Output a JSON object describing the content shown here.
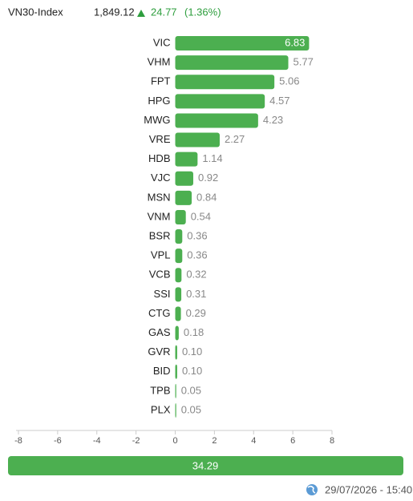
{
  "header": {
    "index_name": "VN30-Index",
    "value": "1,849.12",
    "change": "24.77",
    "change_pct": "(1.36%)"
  },
  "chart_data": {
    "type": "bar",
    "orientation": "horizontal",
    "color": "#4caf50",
    "categories": [
      "VIC",
      "VHM",
      "FPT",
      "HPG",
      "MWG",
      "VRE",
      "HDB",
      "VJC",
      "MSN",
      "VNM",
      "BSR",
      "VPL",
      "VCB",
      "SSI",
      "CTG",
      "GAS",
      "GVR",
      "BID",
      "TPB",
      "PLX"
    ],
    "values": [
      6.83,
      5.77,
      5.06,
      4.57,
      4.23,
      2.27,
      1.14,
      0.92,
      0.84,
      0.54,
      0.36,
      0.36,
      0.32,
      0.31,
      0.29,
      0.18,
      0.1,
      0.1,
      0.05,
      0.05
    ],
    "value_labels": [
      "6.83",
      "5.77",
      "5.06",
      "4.57",
      "4.23",
      "2.27",
      "1.14",
      "0.92",
      "0.84",
      "0.54",
      "0.36",
      "0.36",
      "0.32",
      "0.31",
      "0.29",
      "0.18",
      "0.10",
      "0.10",
      "0.05",
      "0.05"
    ],
    "xlim": [
      -8,
      8
    ],
    "xticks": [
      -8,
      -6,
      -4,
      -2,
      0,
      2,
      4,
      6,
      8
    ],
    "total": 34.29
  },
  "footer": {
    "timestamp": "29/07/2026 - 15:40"
  }
}
